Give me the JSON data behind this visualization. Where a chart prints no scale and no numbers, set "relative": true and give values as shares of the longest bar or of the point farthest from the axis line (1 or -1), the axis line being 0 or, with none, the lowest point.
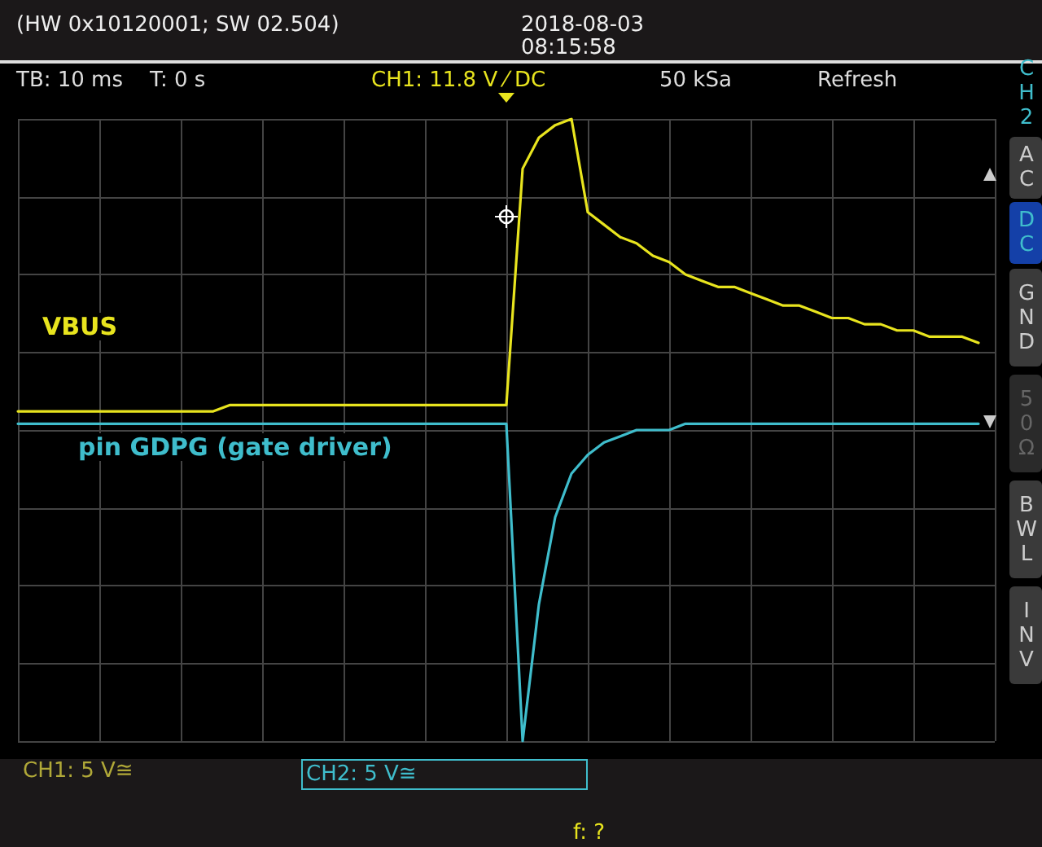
{
  "chart_data": {
    "type": "line",
    "relative": true,
    "grid": true,
    "legend": false,
    "marker": "none",
    "line_style": "solid",
    "categories": [
      null,
      null,
      null,
      null,
      null,
      null,
      null,
      null,
      null,
      null,
      null,
      null,
      null,
      null,
      null,
      null,
      null,
      null,
      null,
      null,
      null,
      null,
      null,
      null,
      null,
      null,
      null,
      null,
      null,
      null,
      null,
      null,
      null,
      null,
      null,
      null,
      null,
      null,
      null,
      null,
      null,
      null,
      null,
      null,
      null,
      null,
      null,
      null,
      null,
      null,
      null,
      null,
      null,
      null,
      null,
      null,
      null,
      null,
      null,
      null,
      null
    ],
    "series": [
      {
        "name": "VBUS",
        "color": "#e8e41e",
        "values": [
          0.53,
          0.53,
          0.53,
          0.53,
          0.53,
          0.53,
          0.53,
          0.53,
          0.53,
          0.53,
          0.53,
          0.53,
          0.53,
          0.54,
          0.54,
          0.54,
          0.54,
          0.54,
          0.54,
          0.54,
          0.54,
          0.54,
          0.54,
          0.54,
          0.54,
          0.54,
          0.54,
          0.54,
          0.54,
          0.54,
          0.54,
          0.92,
          0.97,
          0.99,
          1,
          0.85,
          0.83,
          0.81,
          0.8,
          0.78,
          0.77,
          0.75,
          0.74,
          0.73,
          0.73,
          0.72,
          0.71,
          0.7,
          0.7,
          0.69,
          0.68,
          0.68,
          0.67,
          0.67,
          0.66,
          0.66,
          0.65,
          0.65,
          0.65,
          0.64,
          null
        ]
      },
      {
        "name": "pin GDPG (gate driver)",
        "color": "#3fbdcc",
        "values": [
          0.51,
          0.51,
          0.51,
          0.51,
          0.51,
          0.51,
          0.51,
          0.51,
          0.51,
          0.51,
          0.51,
          0.51,
          0.51,
          0.51,
          0.51,
          0.51,
          0.51,
          0.51,
          0.51,
          0.51,
          0.51,
          0.51,
          0.51,
          0.51,
          0.51,
          0.51,
          0.51,
          0.51,
          0.51,
          0.51,
          0.51,
          0,
          0.22,
          0.36,
          0.43,
          0.46,
          0.48,
          0.49,
          0.5,
          0.5,
          0.5,
          0.51,
          0.51,
          0.51,
          0.51,
          0.51,
          0.51,
          0.51,
          0.51,
          0.51,
          0.51,
          0.51,
          0.51,
          0.51,
          0.51,
          0.51,
          0.51,
          0.51,
          0.51,
          0.51,
          null
        ]
      }
    ],
    "annotations": [
      "(HW 0x10120001; SW 02.504)",
      "2018-08-03",
      "08:15:58",
      "TB: 10 ms",
      "T: 0 s",
      "CH1: 11.8 V ⁄ DC",
      "50 kSa",
      "Refresh",
      "CH2",
      "AC",
      "DC",
      "GND",
      "50Ω",
      "BWL",
      "INV",
      "CH1: 5 V≅",
      "CH2: 5 V≅",
      "f: ?"
    ]
  }
}
